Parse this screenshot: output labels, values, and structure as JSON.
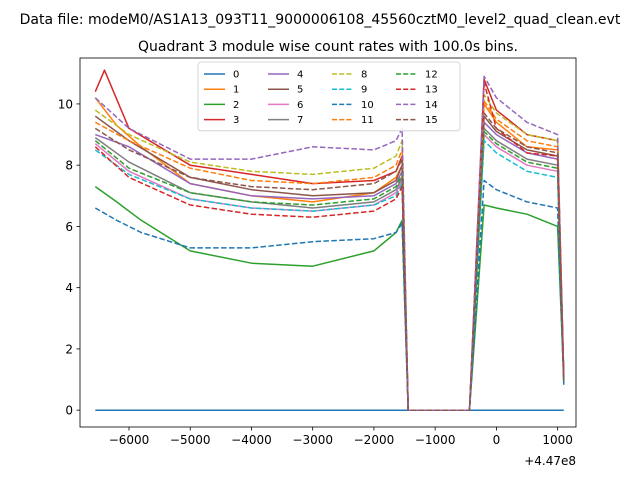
{
  "figure": {
    "suptitle": "Data file: modeM0/AS1A13_093T11_9000006108_45560cztM0_level2_quad_clean.evt",
    "offset_label": "+4.47e8"
  },
  "chart_data": {
    "type": "line",
    "title": "Quadrant 3 module wise count rates with 100.0s bins.",
    "xlabel": "",
    "ylabel": "",
    "x_offset": 447000000,
    "xlim": [
      -6800,
      1300
    ],
    "ylim": [
      -0.55,
      11.5
    ],
    "x_ticks": [
      -6000,
      -5000,
      -4000,
      -3000,
      -2000,
      -1000,
      0,
      1000
    ],
    "x_tick_labels": [
      "−6000",
      "−5000",
      "−4000",
      "−3000",
      "−2000",
      "−1000",
      "0",
      "1000"
    ],
    "y_ticks": [
      0,
      2,
      4,
      6,
      8,
      10
    ],
    "y_tick_labels": [
      "0",
      "2",
      "4",
      "6",
      "8",
      "10"
    ],
    "grid": false,
    "legend": {
      "placement": "top-center",
      "columns": 4
    },
    "gap": {
      "start": -1440,
      "end": -440,
      "value": 0
    },
    "series": [
      {
        "name": "0",
        "color": "#1f77b4",
        "style": "solid",
        "values": [
          [
            -6550,
            0
          ],
          [
            1100,
            0
          ]
        ]
      },
      {
        "name": "1",
        "color": "#ff7f0e",
        "style": "solid",
        "values": [
          [
            -6550,
            10.2
          ],
          [
            -6200,
            9.3
          ],
          [
            -5800,
            8.6
          ],
          [
            -5000,
            7.4
          ],
          [
            -4000,
            7.0
          ],
          [
            -3000,
            6.8
          ],
          [
            -2000,
            7.1
          ],
          [
            -1640,
            7.6
          ],
          [
            -1540,
            8.0
          ],
          [
            -1440,
            0
          ],
          [
            -440,
            0
          ],
          [
            -200,
            10.0
          ],
          [
            0,
            9.4
          ],
          [
            500,
            8.6
          ],
          [
            1000,
            8.5
          ],
          [
            1100,
            1.0
          ]
        ]
      },
      {
        "name": "2",
        "color": "#2ca02c",
        "style": "solid",
        "values": [
          [
            -6550,
            7.3
          ],
          [
            -6200,
            6.8
          ],
          [
            -5800,
            6.2
          ],
          [
            -5000,
            5.2
          ],
          [
            -4000,
            4.8
          ],
          [
            -3000,
            4.7
          ],
          [
            -2000,
            5.2
          ],
          [
            -1640,
            5.8
          ],
          [
            -1540,
            6.2
          ],
          [
            -1440,
            0
          ],
          [
            -440,
            0
          ],
          [
            -200,
            6.7
          ],
          [
            0,
            6.6
          ],
          [
            500,
            6.4
          ],
          [
            1000,
            6.0
          ],
          [
            1100,
            1.0
          ]
        ]
      },
      {
        "name": "3",
        "color": "#d62728",
        "style": "solid",
        "values": [
          [
            -6550,
            10.4
          ],
          [
            -6400,
            11.1
          ],
          [
            -6000,
            9.2
          ],
          [
            -5000,
            8.0
          ],
          [
            -4000,
            7.7
          ],
          [
            -3000,
            7.4
          ],
          [
            -2000,
            7.5
          ],
          [
            -1640,
            7.8
          ],
          [
            -1540,
            8.3
          ],
          [
            -1440,
            0
          ],
          [
            -440,
            0
          ],
          [
            -200,
            10.8
          ],
          [
            0,
            9.8
          ],
          [
            500,
            9.0
          ],
          [
            1000,
            8.8
          ],
          [
            1100,
            1.1
          ]
        ]
      },
      {
        "name": "4",
        "color": "#9467bd",
        "style": "solid",
        "values": [
          [
            -6550,
            9.0
          ],
          [
            -6000,
            8.6
          ],
          [
            -5000,
            7.4
          ],
          [
            -4000,
            7.0
          ],
          [
            -3000,
            6.9
          ],
          [
            -2000,
            7.0
          ],
          [
            -1640,
            7.4
          ],
          [
            -1540,
            7.8
          ],
          [
            -1440,
            0
          ],
          [
            -440,
            0
          ],
          [
            -200,
            9.4
          ],
          [
            0,
            9.0
          ],
          [
            500,
            8.4
          ],
          [
            1000,
            8.2
          ],
          [
            1100,
            0.9
          ]
        ]
      },
      {
        "name": "5",
        "color": "#8c564b",
        "style": "solid",
        "values": [
          [
            -6550,
            9.6
          ],
          [
            -6000,
            8.8
          ],
          [
            -5000,
            7.6
          ],
          [
            -4000,
            7.2
          ],
          [
            -3000,
            7.0
          ],
          [
            -2000,
            7.1
          ],
          [
            -1640,
            7.5
          ],
          [
            -1540,
            8.0
          ],
          [
            -1440,
            0
          ],
          [
            -440,
            0
          ],
          [
            -200,
            9.6
          ],
          [
            0,
            9.1
          ],
          [
            500,
            8.5
          ],
          [
            1000,
            8.3
          ],
          [
            1100,
            1.0
          ]
        ]
      },
      {
        "name": "6",
        "color": "#e377c2",
        "style": "solid",
        "values": [
          [
            -6550,
            8.7
          ],
          [
            -6000,
            7.8
          ],
          [
            -5000,
            6.9
          ],
          [
            -4000,
            6.6
          ],
          [
            -3000,
            6.5
          ],
          [
            -2000,
            6.7
          ],
          [
            -1640,
            7.1
          ],
          [
            -1540,
            7.5
          ],
          [
            -1440,
            0
          ],
          [
            -440,
            0
          ],
          [
            -200,
            9.0
          ],
          [
            0,
            8.6
          ],
          [
            500,
            8.0
          ],
          [
            1000,
            7.8
          ],
          [
            1100,
            0.9
          ]
        ]
      },
      {
        "name": "7",
        "color": "#7f7f7f",
        "style": "solid",
        "values": [
          [
            -6550,
            8.9
          ],
          [
            -6000,
            8.1
          ],
          [
            -5000,
            7.1
          ],
          [
            -4000,
            6.8
          ],
          [
            -3000,
            6.6
          ],
          [
            -2000,
            6.8
          ],
          [
            -1640,
            7.2
          ],
          [
            -1540,
            7.6
          ],
          [
            -1440,
            0
          ],
          [
            -440,
            0
          ],
          [
            -200,
            9.2
          ],
          [
            0,
            8.8
          ],
          [
            500,
            8.2
          ],
          [
            1000,
            8.0
          ],
          [
            1100,
            0.9
          ]
        ]
      },
      {
        "name": "8",
        "color": "#bcbd22",
        "style": "dashed",
        "values": [
          [
            -6550,
            9.8
          ],
          [
            -6000,
            9.0
          ],
          [
            -5000,
            8.1
          ],
          [
            -4000,
            7.8
          ],
          [
            -3000,
            7.7
          ],
          [
            -2000,
            7.9
          ],
          [
            -1640,
            8.3
          ],
          [
            -1540,
            8.8
          ],
          [
            -1440,
            0
          ],
          [
            -440,
            0
          ],
          [
            -200,
            10.3
          ],
          [
            0,
            9.7
          ],
          [
            500,
            9.0
          ],
          [
            1000,
            8.8
          ],
          [
            1100,
            1.0
          ]
        ]
      },
      {
        "name": "9",
        "color": "#17becf",
        "style": "dashed",
        "values": [
          [
            -6550,
            8.5
          ],
          [
            -6000,
            7.7
          ],
          [
            -5000,
            6.9
          ],
          [
            -4000,
            6.6
          ],
          [
            -3000,
            6.5
          ],
          [
            -2000,
            6.7
          ],
          [
            -1640,
            7.0
          ],
          [
            -1540,
            7.4
          ],
          [
            -1440,
            0
          ],
          [
            -440,
            0
          ],
          [
            -200,
            8.8
          ],
          [
            0,
            8.4
          ],
          [
            500,
            7.8
          ],
          [
            1000,
            7.6
          ],
          [
            1100,
            0.9
          ]
        ]
      },
      {
        "name": "10",
        "color": "#1f77b4",
        "style": "dashed",
        "values": [
          [
            -6550,
            6.6
          ],
          [
            -6200,
            6.2
          ],
          [
            -5800,
            5.8
          ],
          [
            -5000,
            5.3
          ],
          [
            -4000,
            5.3
          ],
          [
            -3000,
            5.5
          ],
          [
            -2000,
            5.6
          ],
          [
            -1640,
            5.8
          ],
          [
            -1540,
            6.1
          ],
          [
            -1440,
            0
          ],
          [
            -440,
            0
          ],
          [
            -200,
            7.5
          ],
          [
            0,
            7.2
          ],
          [
            500,
            6.8
          ],
          [
            1000,
            6.6
          ],
          [
            1100,
            0.8
          ]
        ]
      },
      {
        "name": "11",
        "color": "#ff7f0e",
        "style": "dashed",
        "values": [
          [
            -6550,
            9.4
          ],
          [
            -6000,
            8.8
          ],
          [
            -5000,
            7.9
          ],
          [
            -4000,
            7.5
          ],
          [
            -3000,
            7.4
          ],
          [
            -2000,
            7.6
          ],
          [
            -1640,
            8.0
          ],
          [
            -1540,
            8.5
          ],
          [
            -1440,
            0
          ],
          [
            -440,
            0
          ],
          [
            -200,
            10.1
          ],
          [
            0,
            9.5
          ],
          [
            500,
            8.8
          ],
          [
            1000,
            8.6
          ],
          [
            1100,
            1.0
          ]
        ]
      },
      {
        "name": "12",
        "color": "#2ca02c",
        "style": "dashed",
        "values": [
          [
            -6550,
            8.8
          ],
          [
            -6000,
            7.9
          ],
          [
            -5000,
            7.1
          ],
          [
            -4000,
            6.8
          ],
          [
            -3000,
            6.7
          ],
          [
            -2000,
            6.9
          ],
          [
            -1640,
            7.3
          ],
          [
            -1540,
            7.7
          ],
          [
            -1440,
            0
          ],
          [
            -440,
            0
          ],
          [
            -200,
            9.1
          ],
          [
            0,
            8.7
          ],
          [
            500,
            8.1
          ],
          [
            1000,
            7.9
          ],
          [
            1100,
            0.9
          ]
        ]
      },
      {
        "name": "13",
        "color": "#d62728",
        "style": "dashed",
        "values": [
          [
            -6550,
            8.6
          ],
          [
            -6000,
            7.6
          ],
          [
            -5000,
            6.7
          ],
          [
            -4000,
            6.4
          ],
          [
            -3000,
            6.3
          ],
          [
            -2000,
            6.5
          ],
          [
            -1640,
            6.9
          ],
          [
            -1540,
            7.3
          ],
          [
            -1440,
            0
          ],
          [
            -440,
            0
          ],
          [
            -200,
            10.7
          ],
          [
            0,
            9.2
          ],
          [
            500,
            8.4
          ],
          [
            1000,
            8.3
          ],
          [
            1100,
            1.0
          ]
        ]
      },
      {
        "name": "14",
        "color": "#9467bd",
        "style": "dashed",
        "values": [
          [
            -6550,
            10.2
          ],
          [
            -6000,
            9.2
          ],
          [
            -5000,
            8.2
          ],
          [
            -4000,
            8.2
          ],
          [
            -3000,
            8.6
          ],
          [
            -2000,
            8.5
          ],
          [
            -1640,
            8.8
          ],
          [
            -1540,
            9.2
          ],
          [
            -1440,
            0
          ],
          [
            -440,
            0
          ],
          [
            -200,
            10.9
          ],
          [
            0,
            10.2
          ],
          [
            500,
            9.4
          ],
          [
            1000,
            9.0
          ],
          [
            1100,
            1.1
          ]
        ]
      },
      {
        "name": "15",
        "color": "#8c564b",
        "style": "dashed",
        "values": [
          [
            -6550,
            9.2
          ],
          [
            -6000,
            8.5
          ],
          [
            -5000,
            7.6
          ],
          [
            -4000,
            7.3
          ],
          [
            -3000,
            7.2
          ],
          [
            -2000,
            7.4
          ],
          [
            -1640,
            7.8
          ],
          [
            -1540,
            8.2
          ],
          [
            -1440,
            0
          ],
          [
            -440,
            0
          ],
          [
            -200,
            9.7
          ],
          [
            0,
            9.2
          ],
          [
            500,
            8.6
          ],
          [
            1000,
            8.4
          ],
          [
            1100,
            1.0
          ]
        ]
      }
    ]
  }
}
